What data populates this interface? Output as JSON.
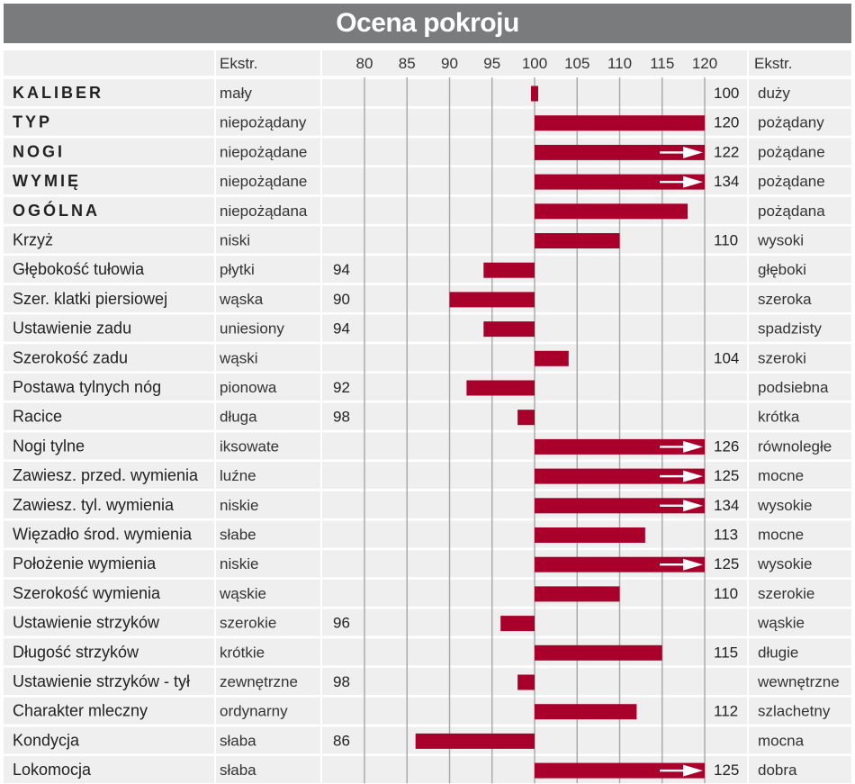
{
  "chart_data": {
    "type": "bar",
    "title": "Ocena pokroju",
    "header": {
      "left_extreme": "Ekstr.",
      "right_extreme": "Ekstr."
    },
    "x_ticks": [
      80,
      85,
      90,
      95,
      100,
      105,
      110,
      115,
      120
    ],
    "xlim": [
      80,
      120
    ],
    "baseline": 100,
    "colors": {
      "bar": "#a8002a",
      "row_bg": "#efefef",
      "grid": "#a6a6a6",
      "title_bg": "#7a7b7d"
    },
    "rows": [
      {
        "trait": "KALIBER",
        "bold": true,
        "low": "mały",
        "value": 100,
        "label": "100",
        "high": "duży",
        "side": "right"
      },
      {
        "trait": "TYP",
        "bold": true,
        "low": "niepożądany",
        "value": 120,
        "label": "120",
        "high": "pożądany",
        "side": "right"
      },
      {
        "trait": "NOGI",
        "bold": true,
        "low": "niepożądane",
        "value": 122,
        "label": "122",
        "high": "pożądane",
        "side": "right"
      },
      {
        "trait": "WYMIĘ",
        "bold": true,
        "low": "niepożądane",
        "value": 134,
        "label": "134",
        "high": "pożądane",
        "side": "right"
      },
      {
        "trait": "OGÓLNA",
        "bold": true,
        "low": "niepożądana",
        "value": 118,
        "label": "",
        "high": "pożądana",
        "side": "right"
      },
      {
        "trait": "Krzyż",
        "bold": false,
        "low": "niski",
        "value": 110,
        "label": "110",
        "high": "wysoki",
        "side": "right"
      },
      {
        "trait": "Głębokość tułowia",
        "bold": false,
        "low": "płytki",
        "value": 94,
        "label": "94",
        "high": "głęboki",
        "side": "left"
      },
      {
        "trait": "Szer. klatki piersiowej",
        "bold": false,
        "low": "wąska",
        "value": 90,
        "label": "90",
        "high": "szeroka",
        "side": "left"
      },
      {
        "trait": "Ustawienie zadu",
        "bold": false,
        "low": "uniesiony",
        "value": 94,
        "label": "94",
        "high": "spadzisty",
        "side": "left"
      },
      {
        "trait": "Szerokość zadu",
        "bold": false,
        "low": "wąski",
        "value": 104,
        "label": "104",
        "high": "szeroki",
        "side": "right"
      },
      {
        "trait": "Postawa tylnych nóg",
        "bold": false,
        "low": "pionowa",
        "value": 92,
        "label": "92",
        "high": "podsiebna",
        "side": "left"
      },
      {
        "trait": "Racice",
        "bold": false,
        "low": "długa",
        "value": 98,
        "label": "98",
        "high": "krótka",
        "side": "left"
      },
      {
        "trait": "Nogi tylne",
        "bold": false,
        "low": "iksowate",
        "value": 126,
        "label": "126",
        "high": "równoległe",
        "side": "right"
      },
      {
        "trait": "Zawiesz. przed. wymienia",
        "bold": false,
        "low": "luźne",
        "value": 125,
        "label": "125",
        "high": "mocne",
        "side": "right"
      },
      {
        "trait": "Zawiesz. tyl. wymienia",
        "bold": false,
        "low": "niskie",
        "value": 134,
        "label": "134",
        "high": "wysokie",
        "side": "right"
      },
      {
        "trait": "Więzadło środ. wymienia",
        "bold": false,
        "low": "słabe",
        "value": 113,
        "label": "113",
        "high": "mocne",
        "side": "right"
      },
      {
        "trait": "Położenie wymienia",
        "bold": false,
        "low": "niskie",
        "value": 125,
        "label": "125",
        "high": "wysokie",
        "side": "right"
      },
      {
        "trait": "Szerokość wymienia",
        "bold": false,
        "low": "wąskie",
        "value": 110,
        "label": "110",
        "high": "szerokie",
        "side": "right"
      },
      {
        "trait": "Ustawienie strzyków",
        "bold": false,
        "low": "szerokie",
        "value": 96,
        "label": "96",
        "high": "wąskie",
        "side": "left"
      },
      {
        "trait": "Długość strzyków",
        "bold": false,
        "low": "krótkie",
        "value": 115,
        "label": "115",
        "high": "długie",
        "side": "right"
      },
      {
        "trait": "Ustawienie strzyków - tył",
        "bold": false,
        "low": "zewnętrzne",
        "value": 98,
        "label": "98",
        "high": "wewnętrzne",
        "side": "left"
      },
      {
        "trait": "Charakter mleczny",
        "bold": false,
        "low": "ordynarny",
        "value": 112,
        "label": "112",
        "high": "szlachetny",
        "side": "right"
      },
      {
        "trait": "Kondycja",
        "bold": false,
        "low": "słaba",
        "value": 86,
        "label": "86",
        "high": "mocna",
        "side": "left"
      },
      {
        "trait": "Lokomocja",
        "bold": false,
        "low": "słaba",
        "value": 125,
        "label": "125",
        "high": "dobra",
        "side": "right"
      }
    ]
  }
}
